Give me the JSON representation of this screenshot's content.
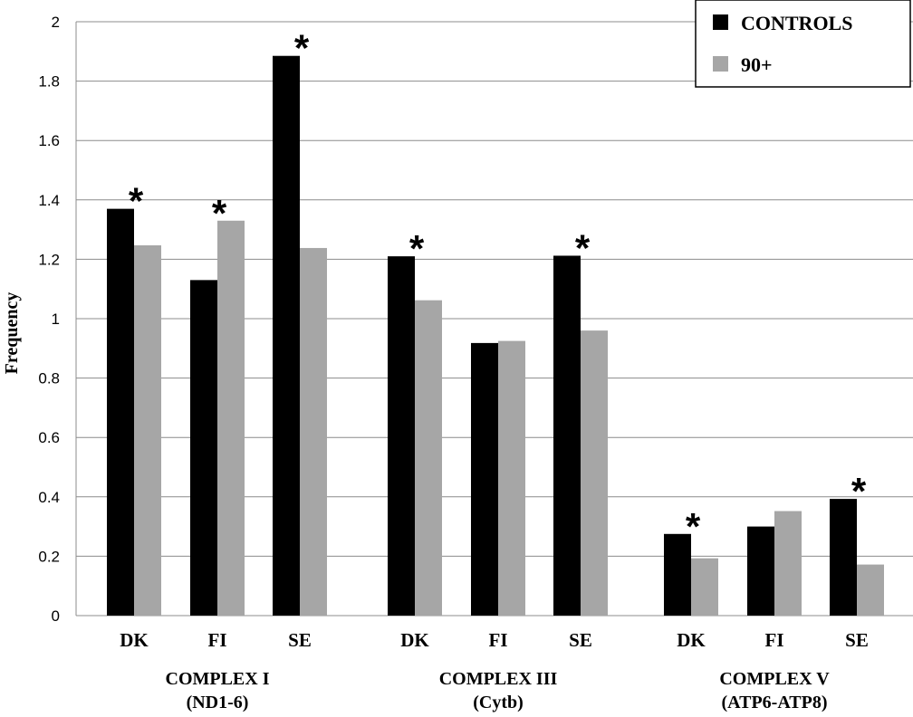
{
  "chart_data": {
    "type": "bar",
    "ylabel": "Frequency",
    "ylim": [
      0,
      2
    ],
    "yticks": [
      "0",
      "0.2",
      "0.4",
      "0.6",
      "0.8",
      "1",
      "1.2",
      "1.4",
      "1.6",
      "1.8",
      "2"
    ],
    "grid": true,
    "legend_position": "top-right",
    "categories": [
      "DK",
      "FI",
      "SE",
      "DK",
      "FI",
      "SE",
      "DK",
      "FI",
      "SE"
    ],
    "groups": [
      {
        "label_line1": "COMPLEX I",
        "label_line2": "(ND1-6)",
        "categories": [
          0,
          1,
          2
        ]
      },
      {
        "label_line1": "COMPLEX III",
        "label_line2": "(Cytb)",
        "categories": [
          3,
          4,
          5
        ]
      },
      {
        "label_line1": "COMPLEX  V",
        "label_line2": "(ATP6-ATP8)",
        "categories": [
          6,
          7,
          8
        ]
      }
    ],
    "series": [
      {
        "name": "CONTROLS",
        "color": "#000000",
        "values": [
          1.37,
          1.13,
          1.885,
          1.21,
          0.918,
          1.212,
          0.275,
          0.3,
          0.393
        ]
      },
      {
        "name": "90+",
        "color": "#a6a6a6",
        "values": [
          1.247,
          1.33,
          1.238,
          1.062,
          0.925,
          0.96,
          0.193,
          0.352,
          0.172
        ]
      }
    ],
    "significance_marker": "*",
    "significant": [
      true,
      true,
      true,
      true,
      false,
      true,
      true,
      false,
      true
    ]
  }
}
